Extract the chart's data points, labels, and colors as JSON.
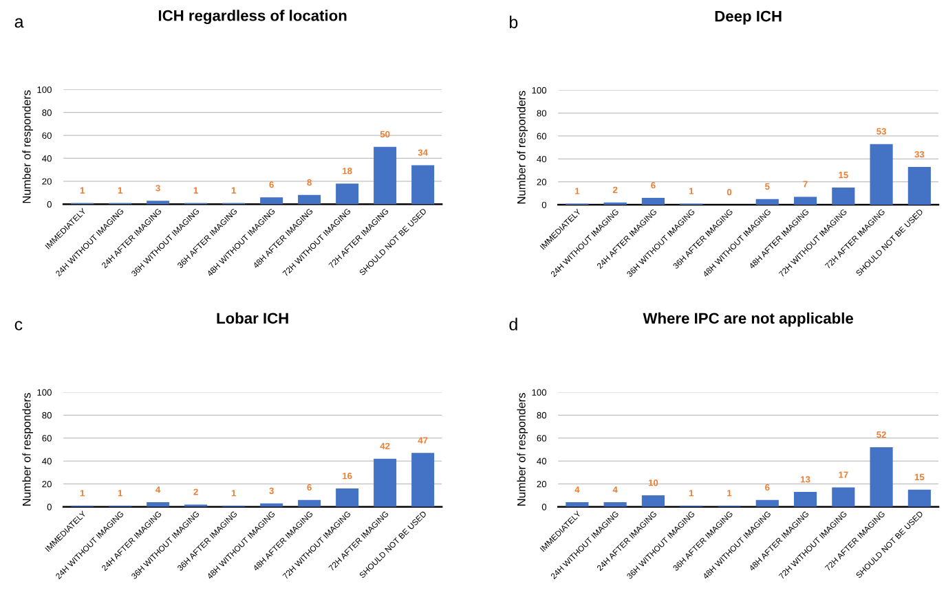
{
  "chart_data": [
    {
      "type": "bar",
      "title": "ICH regardless of location",
      "ylabel": "Number of responders",
      "annotations": [
        "a"
      ],
      "categories": [
        "IMMEDIATELY",
        "24H WITHOUT IMAGING",
        "24H AFTER IMAGING",
        "36H WITHOUT IMAGING",
        "36H AFTER IMAGING",
        "48H WITHOUT IMAGING",
        "48H AFTER IMAGING",
        "72H WITHOUT IMAGING",
        "72H AFTER IMAGING",
        "SHOULD NOT BE USED"
      ],
      "values": [
        1,
        1,
        3,
        1,
        1,
        6,
        8,
        18,
        50,
        34
      ],
      "color": "#4472c4",
      "ylim": [
        0,
        100
      ],
      "yticks": [
        0,
        20,
        40,
        60,
        80,
        100
      ],
      "grid": "y",
      "data_labels": true
    },
    {
      "type": "bar",
      "title": "Deep ICH",
      "ylabel": "Number of responders",
      "annotations": [
        "b"
      ],
      "categories": [
        "IMMEDIATELY",
        "24H WITHOUT IMAGING",
        "24H AFTER IMAGING",
        "36H WITHOUT IMAGING",
        "36H AFTER IMAGING",
        "48H WITHOUT IMAGING",
        "48H AFTER IMAGING",
        "72H WITHOUT IMAGING",
        "72H AFTER IMAGING",
        "SHOULD NOT BE USED"
      ],
      "values": [
        1,
        2,
        6,
        1,
        0,
        5,
        7,
        15,
        53,
        33
      ],
      "color": "#4472c4",
      "ylim": [
        0,
        100
      ],
      "yticks": [
        0,
        20,
        40,
        60,
        80,
        100
      ],
      "grid": "y",
      "data_labels": true
    },
    {
      "type": "bar",
      "title": "Lobar ICH",
      "ylabel": "Number of responders",
      "annotations": [
        "c"
      ],
      "categories": [
        "IMMEDIATELY",
        "24H WITHOUT IMAGING",
        "24H AFTER IMAGING",
        "36H WITHOUT IMAGING",
        "36H AFTER IMAGING",
        "48H WITHOUT IMAGING",
        "48H AFTER IMAGING",
        "72H WITHOUT IMAGING",
        "72H AFTER IMAGING",
        "SHOULD NOT BE USED"
      ],
      "values": [
        1,
        1,
        4,
        2,
        1,
        3,
        6,
        16,
        42,
        47
      ],
      "color": "#4472c4",
      "ylim": [
        0,
        100
      ],
      "yticks": [
        0,
        20,
        40,
        60,
        80,
        100
      ],
      "grid": "y",
      "data_labels": true
    },
    {
      "type": "bar",
      "title": "Where IPC are not applicable",
      "ylabel": "Number of responders",
      "annotations": [
        "d"
      ],
      "categories": [
        "IMMEDIATELY",
        "24H WITHOUT IMAGING",
        "24H AFTER IMAGING",
        "36H WITHOUT IMAGING",
        "36H AFTER IMAGING",
        "48H WITHOUT IMAGING",
        "48H AFTER IMAGING",
        "72H WITHOUT IMAGING",
        "72H AFTER IMAGING",
        "SHOULD NOT BE USED"
      ],
      "values": [
        4,
        4,
        10,
        1,
        1,
        6,
        13,
        17,
        52,
        15
      ],
      "color": "#4472c4",
      "ylim": [
        0,
        100
      ],
      "yticks": [
        0,
        20,
        40,
        60,
        80,
        100
      ],
      "grid": "y",
      "data_labels": true
    }
  ]
}
